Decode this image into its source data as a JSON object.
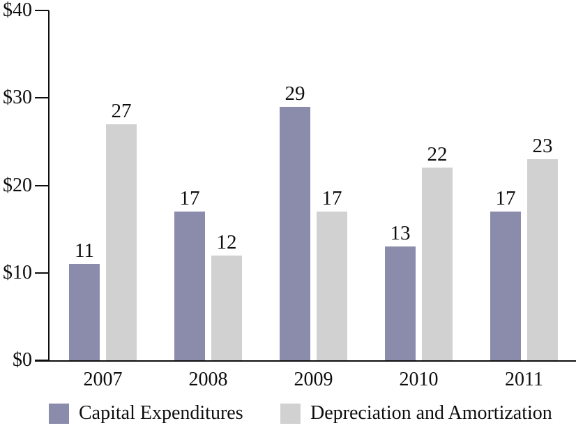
{
  "chart_data": {
    "type": "bar",
    "categories": [
      "2007",
      "2008",
      "2009",
      "2010",
      "2011"
    ],
    "series": [
      {
        "name": "Capital Expenditures",
        "color": "#8B8CAC",
        "values": [
          11,
          17,
          29,
          13,
          17
        ]
      },
      {
        "name": "Depreciation and Amortization",
        "color": "#D1D1D1",
        "values": [
          27,
          12,
          17,
          22,
          23
        ]
      }
    ],
    "title": "",
    "xlabel": "",
    "ylabel": "",
    "y_axis": {
      "tick_labels": [
        "$0",
        "$10",
        "$20",
        "$30",
        "$40"
      ],
      "min": 0,
      "max": 40,
      "step": 10
    },
    "ylim": [
      0,
      40
    ],
    "grid": false,
    "value_labels_shown": true,
    "legend_position": "bottom",
    "axis_color": "#0e0e0e",
    "background_color": "#ffffff"
  }
}
